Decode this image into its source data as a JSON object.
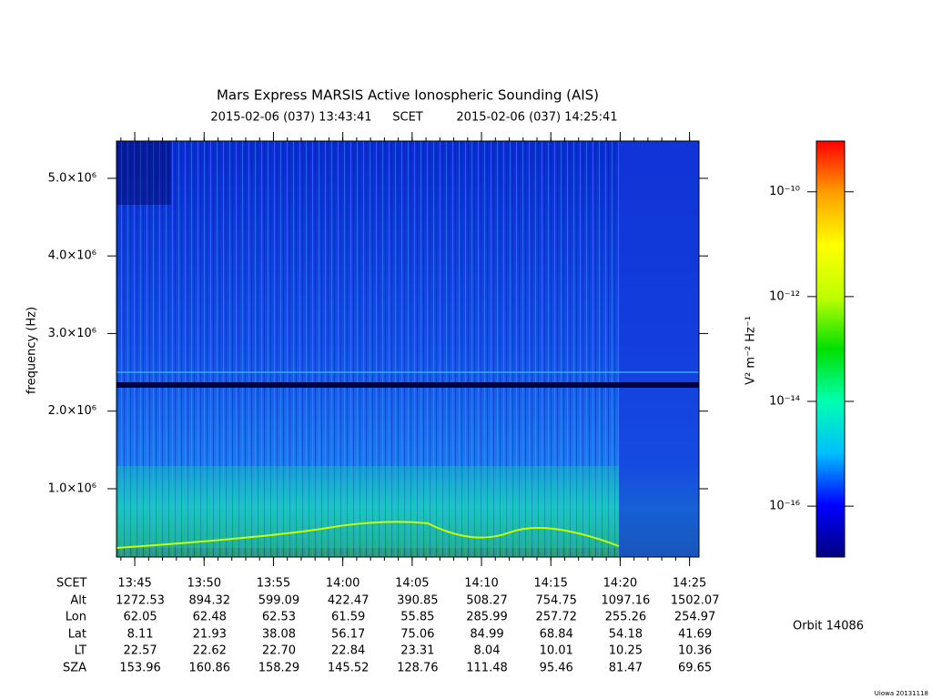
{
  "chart_data": {
    "type": "spectrogram",
    "title": "Mars Express MARSIS Active Ionospheric Sounding (AIS)",
    "start_time": "2015-02-06 (037) 13:43:41",
    "time_system": "SCET",
    "end_time": "2015-02-06 (037) 14:25:41",
    "ylabel": "frequency (Hz)",
    "ylim": [
      120000,
      5480000
    ],
    "yticks": [
      {
        "value": 1000000,
        "label": "1.0×10⁶"
      },
      {
        "value": 2000000,
        "label": "2.0×10⁶"
      },
      {
        "value": 3000000,
        "label": "3.0×10⁶"
      },
      {
        "value": 4000000,
        "label": "4.0×10⁶"
      },
      {
        "value": 5000000,
        "label": "5.0×10⁶"
      }
    ],
    "colorbar": {
      "label": "V² m⁻² Hz⁻¹",
      "log": true,
      "lim": [
        1.07e-17,
        9.3e-10
      ],
      "ticks": [
        {
          "value": 1e-10,
          "label": "10⁻¹⁰"
        },
        {
          "value": 1e-12,
          "label": "10⁻¹²"
        },
        {
          "value": 1e-14,
          "label": "10⁻¹⁴"
        },
        {
          "value": 1e-16,
          "label": "10⁻¹⁶"
        }
      ],
      "colors": [
        "#00007f",
        "#0000ff",
        "#00bfff",
        "#00ffb0",
        "#00e000",
        "#bfff00",
        "#ffff00",
        "#ff9f00",
        "#ff0000"
      ]
    },
    "ephemeris": [
      {
        "label": "SCET",
        "values": [
          "13:45",
          "13:50",
          "13:55",
          "14:00",
          "14:05",
          "14:10",
          "14:15",
          "14:20",
          "14:25"
        ]
      },
      {
        "label": "Alt",
        "values": [
          "1272.53",
          "894.32",
          "599.09",
          "422.47",
          "390.85",
          "508.27",
          "754.75",
          "1097.16",
          "1502.07"
        ]
      },
      {
        "label": "Lon",
        "values": [
          "62.05",
          "62.48",
          "62.53",
          "61.59",
          "55.85",
          "285.99",
          "257.72",
          "255.26",
          "254.97"
        ]
      },
      {
        "label": "Lat",
        "values": [
          "8.11",
          "21.93",
          "38.08",
          "56.17",
          "75.06",
          "84.99",
          "68.84",
          "54.18",
          "41.69"
        ]
      },
      {
        "label": "LT",
        "values": [
          "22.57",
          "22.62",
          "22.70",
          "22.84",
          "23.31",
          "8.04",
          "10.01",
          "10.25",
          "10.36"
        ]
      },
      {
        "label": "SZA",
        "values": [
          "153.96",
          "160.86",
          "158.29",
          "145.52",
          "128.76",
          "111.48",
          "95.46",
          "81.47",
          "69.65"
        ]
      }
    ],
    "orbit": "Orbit 14086",
    "credit": "Uiowa 20131118"
  }
}
